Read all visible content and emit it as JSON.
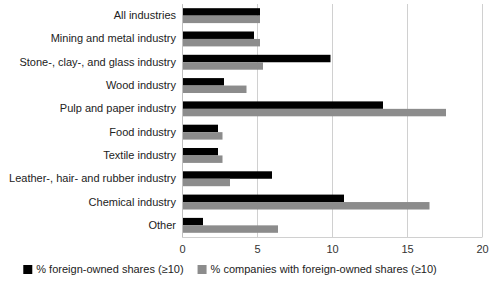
{
  "chart_data": {
    "type": "bar",
    "orientation": "horizontal",
    "grid": true,
    "legend": "bottom",
    "categories": [
      "All industries",
      "Mining and metal industry",
      "Stone-, clay-, and glass industry",
      "Wood industry",
      "Pulp and paper industry",
      "Food industry",
      "Textile industry",
      "Leather-, hair- and rubber industry",
      "Chemical industry",
      "Other"
    ],
    "series": [
      {
        "name": "% foreign-owned shares (≥10)",
        "color": "#000000",
        "values": [
          5.2,
          4.8,
          9.9,
          2.8,
          13.4,
          2.4,
          2.4,
          6.0,
          10.8,
          1.4
        ]
      },
      {
        "name": "% companies with foreign-owned shares (≥10)",
        "color": "#8c8c8c",
        "values": [
          5.2,
          5.2,
          5.4,
          4.3,
          17.6,
          2.7,
          2.7,
          3.2,
          16.5,
          6.4
        ]
      }
    ],
    "xlim": [
      0,
      20
    ],
    "xticks": [
      0,
      5,
      10,
      15,
      20
    ]
  }
}
